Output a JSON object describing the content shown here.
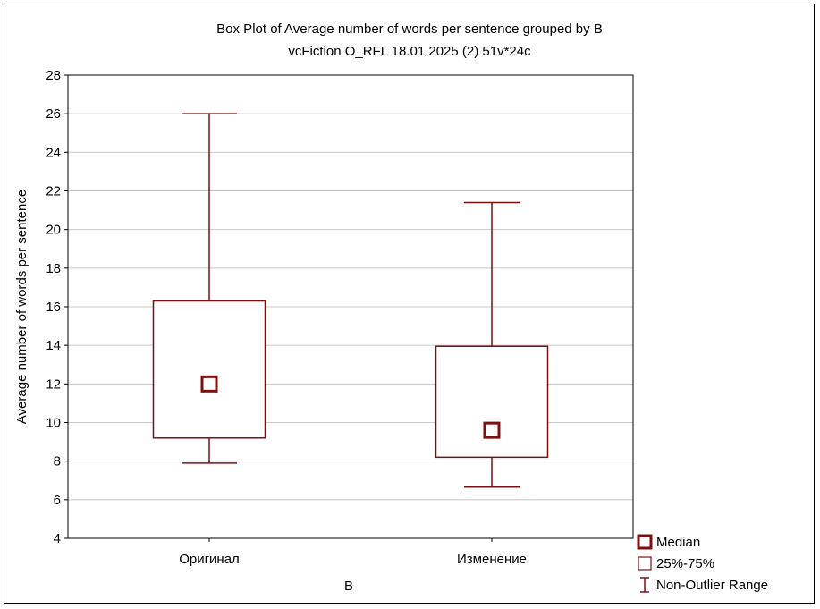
{
  "chart_data": {
    "type": "box",
    "title": "Box Plot of Average number of words per sentence grouped by  B",
    "subtitle": "vcFiction O_RFL 18.01.2025 (2) 51v*24c",
    "xlabel": "B",
    "ylabel": "Average number of words per sentence",
    "categories": [
      "Оригинал",
      "Изменение"
    ],
    "ylim": [
      4,
      28
    ],
    "y_ticks": [
      4,
      6,
      8,
      10,
      12,
      14,
      16,
      18,
      20,
      22,
      24,
      26,
      28
    ],
    "grid": true,
    "boxes": [
      {
        "category": "Оригинал",
        "median": 12.0,
        "q1": 9.2,
        "q3": 16.3,
        "min": 7.9,
        "max": 26.0
      },
      {
        "category": "Изменение",
        "median": 9.6,
        "q1": 8.2,
        "q3": 13.95,
        "min": 6.65,
        "max": 21.4
      }
    ],
    "legend": {
      "position": "bottom-right",
      "entries": [
        "Median",
        "25%-75%",
        "Non-Outlier Range"
      ]
    },
    "colors": {
      "box": "#7a1010",
      "axis": "#000000",
      "grid": "#c8c8c8"
    }
  }
}
